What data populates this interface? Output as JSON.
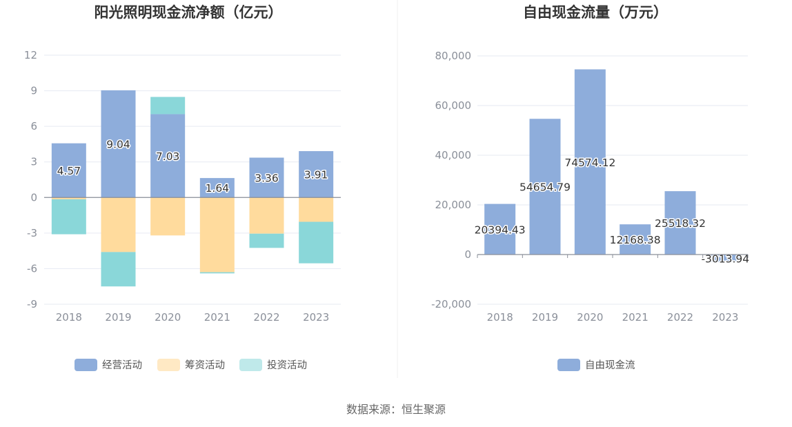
{
  "chart_data": [
    {
      "type": "bar",
      "stacked": true,
      "title": "阳光照明现金流净额（亿元）",
      "categories": [
        "2018",
        "2019",
        "2020",
        "2021",
        "2022",
        "2023"
      ],
      "yticks": [
        "12",
        "9",
        "6",
        "3",
        "0",
        "-3",
        "-6",
        "-9"
      ],
      "ylim": [
        -9,
        12
      ],
      "series": [
        {
          "name": "经营活动",
          "color": "#8eaddb",
          "values": [
            4.57,
            9.04,
            7.03,
            1.64,
            3.36,
            3.91
          ],
          "labels": [
            "4.57",
            "9.04",
            "7.03",
            "1.64",
            "3.36",
            "3.91"
          ]
        },
        {
          "name": "筹资活动",
          "color": "#ffdb9d",
          "values": [
            -0.15,
            -4.6,
            -3.2,
            -6.3,
            -3.05,
            -2.05
          ]
        },
        {
          "name": "投资活动",
          "color": "#8ad7d9",
          "values": [
            -2.95,
            -2.9,
            1.45,
            -0.1,
            -1.2,
            -3.5
          ]
        }
      ],
      "legend": [
        "经营活动",
        "筹资活动",
        "投资活动"
      ],
      "legend_position": "bottom"
    },
    {
      "type": "bar",
      "title": "自由现金流量（万元）",
      "categories": [
        "2018",
        "2019",
        "2020",
        "2021",
        "2022",
        "2023"
      ],
      "yticks": [
        "80,000",
        "60,000",
        "40,000",
        "20,000",
        "0",
        "-20,000"
      ],
      "ylim": [
        -20000,
        80000
      ],
      "series": [
        {
          "name": "自由现金流",
          "color": "#8eaddb",
          "values": [
            20394.43,
            54654.79,
            74574.12,
            12168.38,
            25518.32,
            -3013.94
          ],
          "labels": [
            "20394.43",
            "54654.79",
            "74574.12",
            "12168.38",
            "25518.32",
            "-3013.94"
          ]
        }
      ],
      "legend": [
        "自由现金流"
      ],
      "legend_position": "bottom"
    }
  ],
  "source_text": "数据来源：恒生聚源"
}
